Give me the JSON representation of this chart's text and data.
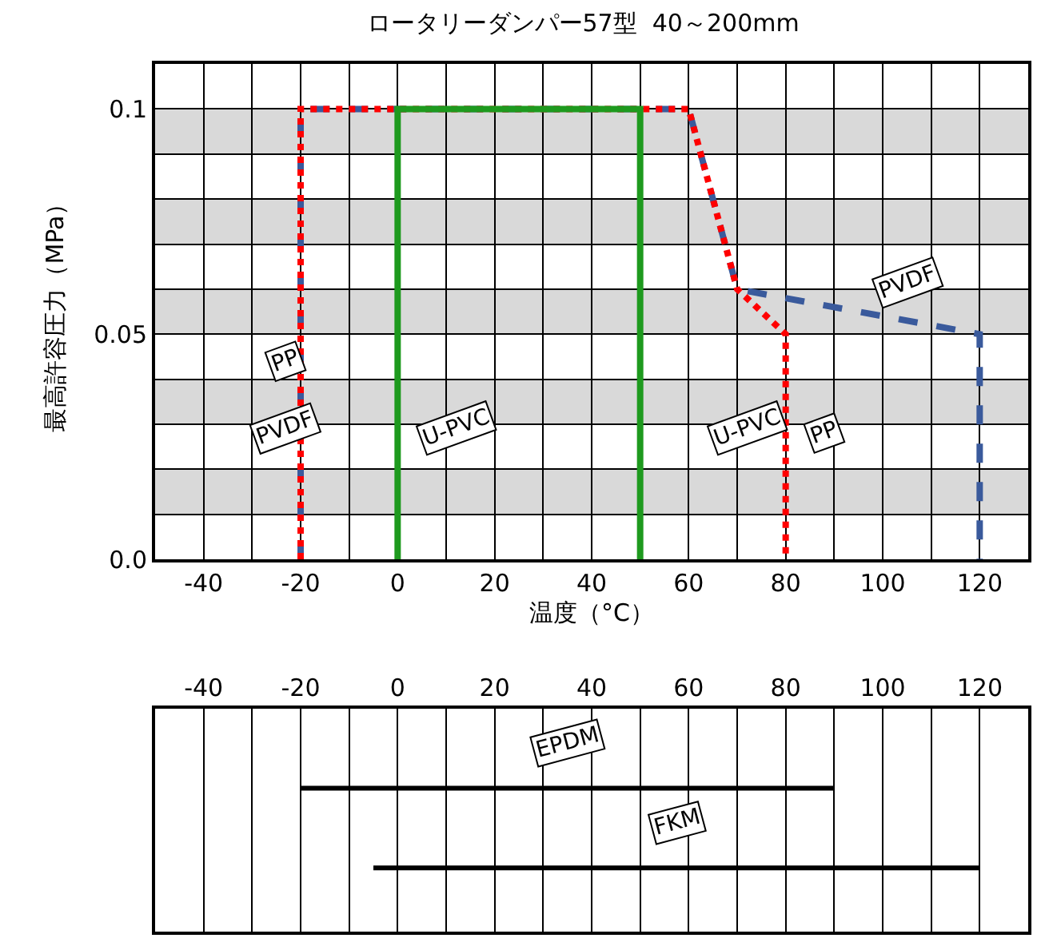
{
  "chart_data": [
    {
      "type": "line",
      "title": "ロータリーダンパー57型  40～200mm",
      "xlabel": "温度（°C）",
      "ylabel": "最高許容圧力（MPa）",
      "series": [
        {
          "name": "PVDF",
          "color": "#3a5a9c",
          "line_style": "dashed",
          "x": [
            -20,
            -20,
            60,
            70,
            120,
            120
          ],
          "values": [
            0,
            0.1,
            0.1,
            0.06,
            0.05,
            0
          ]
        },
        {
          "color": "#ff0000",
          "line_style": "dotted",
          "x": [
            -20,
            -20,
            60,
            70,
            80,
            80
          ],
          "values": [
            0,
            0.1,
            0.1,
            0.06,
            0.05,
            0
          ]
        },
        {
          "color": "#1e9a1e",
          "line_style": "solid",
          "x": [
            0,
            0,
            50,
            50
          ],
          "values": [
            0,
            0.1,
            0.1,
            0
          ]
        }
      ],
      "xlim": [
        -50,
        130
      ],
      "xticks": [
        {
          "value": -50,
          "label": null
        },
        -40,
        {
          "value": -30,
          "label": null
        },
        -20,
        {
          "value": -10,
          "label": null
        },
        0,
        {
          "value": 10,
          "label": null
        },
        20,
        {
          "value": 30,
          "label": null
        },
        40,
        {
          "value": 50,
          "label": null
        },
        60,
        {
          "value": 70,
          "label": null
        },
        80,
        {
          "value": 90,
          "label": null
        },
        100,
        {
          "value": 110,
          "label": null
        },
        120,
        {
          "value": 130,
          "label": null
        }
      ],
      "ylim": [
        0,
        0.11
      ],
      "yticks": [
        {
          "value": 0,
          "label": "0.0"
        },
        {
          "value": 0.01,
          "label": null
        },
        {
          "value": 0.02,
          "label": null
        },
        {
          "value": 0.03,
          "label": null
        },
        {
          "value": 0.04,
          "label": null
        },
        0.05,
        {
          "value": 0.06,
          "label": null
        },
        {
          "value": 0.07,
          "label": null
        },
        {
          "value": 0.08,
          "label": null
        },
        {
          "value": 0.09,
          "label": null
        },
        0.1,
        {
          "value": 0.11,
          "label": null
        }
      ],
      "bands": [
        {
          "axis": "y",
          "from": 0.01,
          "to": 0.02,
          "color": "#d9d9d9"
        },
        {
          "axis": "y",
          "from": 0.03,
          "to": 0.04,
          "color": "#d9d9d9"
        },
        {
          "axis": "y",
          "from": 0.05,
          "to": 0.06,
          "color": "#d9d9d9"
        },
        {
          "axis": "y",
          "from": 0.07,
          "to": 0.08,
          "color": "#d9d9d9"
        },
        {
          "axis": "y",
          "from": 0.09,
          "to": 0.1,
          "color": "#d9d9d9"
        }
      ],
      "annotations": [
        {
          "text": "PP",
          "x": -23,
          "y": 0.044
        },
        {
          "text": "PVDF",
          "x": -23,
          "y": 0.029
        },
        {
          "text": "U-PVC",
          "x": 12,
          "y": 0.029
        },
        {
          "text": "U-PVC",
          "x": 72,
          "y": 0.029
        },
        {
          "text": "PP",
          "x": 88,
          "y": 0.028
        }
      ],
      "grid": true
    },
    {
      "type": "bar",
      "orientation": "horizontal",
      "categories": [
        "EPDM",
        "FKM"
      ],
      "values": [
        110,
        125
      ],
      "base": [
        -20,
        -5
      ],
      "color": "#000000",
      "xlim": [
        -50,
        130
      ],
      "xticks": [
        {
          "value": -50,
          "label": null
        },
        -40,
        {
          "value": -30,
          "label": null
        },
        -20,
        {
          "value": -10,
          "label": null
        },
        0,
        {
          "value": 10,
          "label": null
        },
        20,
        {
          "value": 30,
          "label": null
        },
        40,
        {
          "value": 50,
          "label": null
        },
        60,
        {
          "value": 70,
          "label": null
        },
        80,
        {
          "value": 90,
          "label": null
        },
        100,
        {
          "value": 110,
          "label": null
        },
        120,
        {
          "value": 130,
          "label": null
        }
      ],
      "tick_labels": "x",
      "grid": "x"
    }
  ]
}
